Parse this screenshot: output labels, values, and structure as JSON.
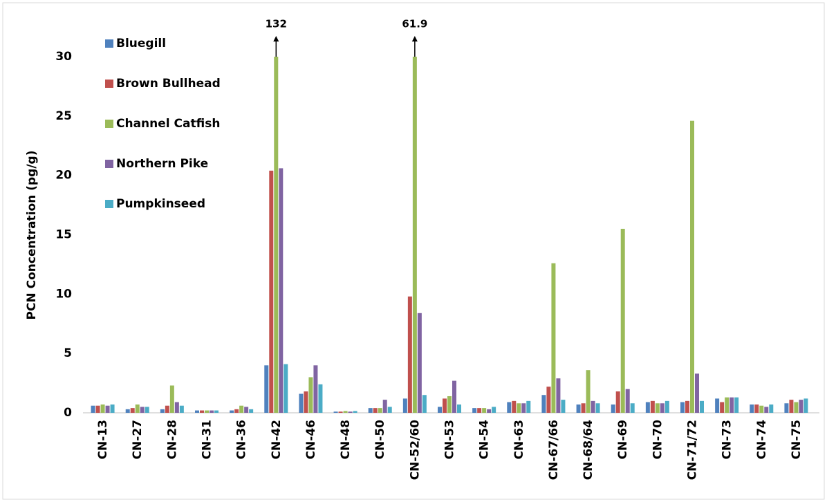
{
  "chart_data": {
    "type": "bar",
    "ylabel": "PCN Concentration (pg/g)",
    "categories": [
      "CN-13",
      "CN-27",
      "CN-28",
      "CN-31",
      "CN-36",
      "CN-42",
      "CN-46",
      "CN-48",
      "CN-50",
      "CN-52/60",
      "CN-53",
      "CN-54",
      "CN-63",
      "CN-67/66",
      "CN-68/64",
      "CN-69",
      "CN-70",
      "CN-71/72",
      "CN-73",
      "CN-74",
      "CN-75"
    ],
    "series": [
      {
        "name": "Bluegill",
        "color": "#4f81bd",
        "values": [
          0.6,
          0.3,
          0.3,
          0.2,
          0.2,
          4.0,
          1.6,
          0.1,
          0.4,
          1.2,
          0.5,
          0.4,
          0.9,
          1.5,
          0.7,
          0.7,
          0.9,
          0.9,
          1.2,
          0.7,
          0.8
        ]
      },
      {
        "name": "Brown Bullhead",
        "color": "#c0504d",
        "values": [
          0.6,
          0.4,
          0.6,
          0.2,
          0.3,
          20.4,
          1.8,
          0.1,
          0.4,
          9.8,
          1.2,
          0.4,
          1.0,
          2.2,
          0.8,
          1.8,
          1.0,
          1.0,
          0.9,
          0.7,
          1.1
        ]
      },
      {
        "name": "Channel Catfish",
        "color": "#9bbb59",
        "values": [
          0.7,
          0.7,
          2.3,
          0.2,
          0.6,
          132,
          3.0,
          0.15,
          0.4,
          61.9,
          1.4,
          0.4,
          0.8,
          12.6,
          3.6,
          15.5,
          0.8,
          24.6,
          1.3,
          0.6,
          0.9
        ],
        "value_labels": [
          null,
          null,
          null,
          null,
          null,
          "132",
          null,
          null,
          null,
          "61.9",
          null,
          null,
          null,
          null,
          null,
          null,
          null,
          null,
          null,
          null,
          null
        ]
      },
      {
        "name": "Northern Pike",
        "color": "#8064a2",
        "values": [
          0.6,
          0.5,
          0.9,
          0.2,
          0.5,
          20.6,
          4.0,
          0.1,
          1.1,
          8.4,
          2.7,
          0.3,
          0.8,
          2.9,
          1.0,
          2.0,
          0.8,
          3.3,
          1.3,
          0.5,
          1.1
        ]
      },
      {
        "name": "Pumpkinseed",
        "color": "#4bacc6",
        "values": [
          0.7,
          0.5,
          0.6,
          0.2,
          0.3,
          4.1,
          2.4,
          0.15,
          0.5,
          1.5,
          0.7,
          0.5,
          1.0,
          1.1,
          0.8,
          0.8,
          1.0,
          1.0,
          1.3,
          0.7,
          1.2
        ]
      }
    ],
    "ylim": [
      0,
      30
    ],
    "yticks": [
      0,
      5,
      10,
      15,
      20,
      25,
      30
    ],
    "grid": false,
    "legend": "upper left"
  }
}
